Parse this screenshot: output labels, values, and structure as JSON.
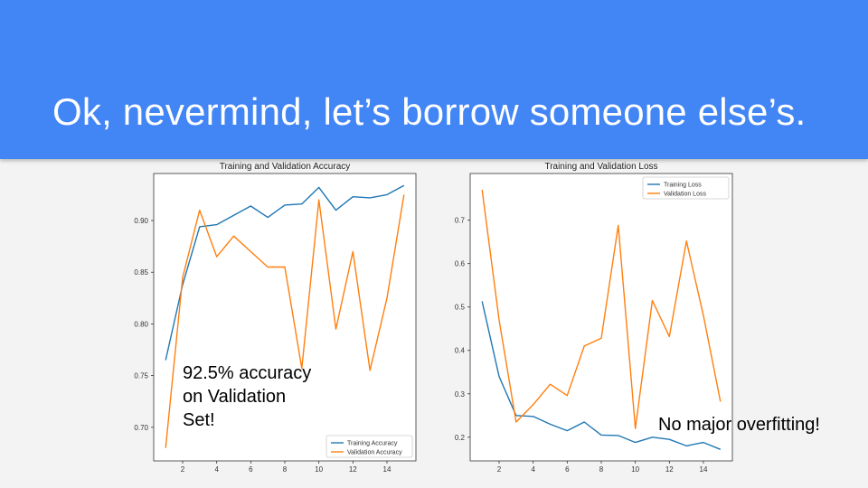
{
  "slide": {
    "title": "Ok, nevermind, let’s borrow someone else’s.",
    "accuracy_callout": [
      "92.5% accuracy",
      "on Validation",
      "Set!"
    ],
    "loss_callout": "No major overfitting!"
  },
  "colors": {
    "header": "#4285f4",
    "training": "#1f77b4",
    "validation": "#ff7f0e"
  },
  "chart_data": [
    {
      "type": "line",
      "title": "Training and Validation Accuracy",
      "xlabel": "",
      "ylabel": "",
      "x": [
        1,
        2,
        3,
        4,
        5,
        6,
        7,
        8,
        9,
        10,
        11,
        12,
        13,
        14,
        15
      ],
      "xticks": [
        2,
        4,
        6,
        8,
        10,
        12,
        14
      ],
      "yticks": [
        0.7,
        0.75,
        0.8,
        0.85,
        0.9
      ],
      "ytick_labels": [
        "0.70",
        "0.75",
        "0.80",
        "0.85",
        "0.90"
      ],
      "xlim": [
        0.3,
        15.7
      ],
      "ylim": [
        0.6675,
        0.9455
      ],
      "legend_position": "lower-right",
      "grid": false,
      "series": [
        {
          "name": "Training Accuracy",
          "color": "#1f77b4",
          "values": [
            0.765,
            0.838,
            0.894,
            0.896,
            0.905,
            0.914,
            0.903,
            0.915,
            0.916,
            0.932,
            0.91,
            0.923,
            0.922,
            0.925,
            0.934
          ]
        },
        {
          "name": "Validation Accuracy",
          "color": "#ff7f0e",
          "values": [
            0.68,
            0.845,
            0.91,
            0.865,
            0.885,
            0.87,
            0.855,
            0.855,
            0.757,
            0.92,
            0.795,
            0.87,
            0.755,
            0.825,
            0.925
          ]
        }
      ]
    },
    {
      "type": "line",
      "title": "Training and Validation Loss",
      "xlabel": "",
      "ylabel": "",
      "x": [
        1,
        2,
        3,
        4,
        5,
        6,
        7,
        8,
        9,
        10,
        11,
        12,
        13,
        14,
        15
      ],
      "xticks": [
        2,
        4,
        6,
        8,
        10,
        12,
        14
      ],
      "yticks": [
        0.2,
        0.3,
        0.4,
        0.5,
        0.6,
        0.7
      ],
      "ytick_labels": [
        "0.2",
        "0.3",
        "0.4",
        "0.5",
        "0.6",
        "0.7"
      ],
      "xlim": [
        0.3,
        15.7
      ],
      "ylim": [
        0.1455,
        0.8075
      ],
      "legend_position": "upper-right",
      "grid": false,
      "series": [
        {
          "name": "Training Loss",
          "color": "#1f77b4",
          "values": [
            0.513,
            0.34,
            0.25,
            0.248,
            0.23,
            0.215,
            0.235,
            0.205,
            0.204,
            0.188,
            0.2,
            0.195,
            0.18,
            0.188,
            0.172
          ]
        },
        {
          "name": "Validation Loss",
          "color": "#ff7f0e",
          "values": [
            0.77,
            0.47,
            0.235,
            0.275,
            0.322,
            0.296,
            0.41,
            0.428,
            0.688,
            0.22,
            0.515,
            0.432,
            0.652,
            0.48,
            0.282
          ]
        }
      ]
    }
  ]
}
